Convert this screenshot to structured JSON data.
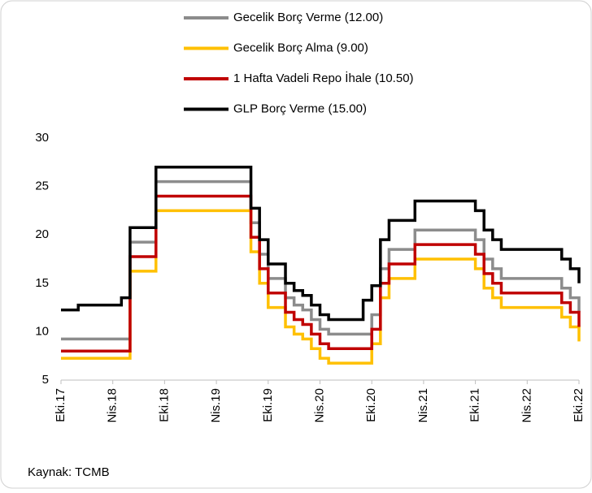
{
  "chart_data": {
    "type": "step-line",
    "categories": [
      "Eki.17",
      null,
      null,
      null,
      null,
      null,
      "Nis.18",
      null,
      null,
      null,
      null,
      null,
      "Eki.18",
      null,
      null,
      null,
      null,
      null,
      "Nis.19",
      null,
      null,
      null,
      null,
      null,
      "Eki.19",
      null,
      null,
      null,
      null,
      null,
      "Nis.20",
      null,
      null,
      null,
      null,
      null,
      "Eki.20",
      null,
      null,
      null,
      null,
      null,
      "Nis.21",
      null,
      null,
      null,
      null,
      null,
      "Eki.21",
      null,
      null,
      null,
      null,
      null,
      "Nis.22",
      null,
      null,
      null,
      null,
      null,
      "Eki.22"
    ],
    "series": [
      {
        "name": "Gecelik Borç Verme (12.00)",
        "color": "#8c8c8c",
        "values": [
          9.25,
          9.25,
          9.25,
          9.25,
          9.25,
          9.25,
          9.25,
          9.25,
          19.25,
          19.25,
          19.25,
          25.5,
          25.5,
          25.5,
          25.5,
          25.5,
          25.5,
          25.5,
          25.5,
          25.5,
          25.5,
          25.5,
          21.25,
          18,
          15.5,
          15.5,
          13.5,
          12.75,
          12.25,
          11.25,
          10.25,
          9.75,
          9.75,
          9.75,
          9.75,
          9.75,
          11.75,
          16.5,
          18.5,
          18.5,
          18.5,
          20.5,
          20.5,
          20.5,
          20.5,
          20.5,
          20.5,
          20.5,
          19.5,
          17.5,
          16.5,
          15.5,
          15.5,
          15.5,
          15.5,
          15.5,
          15.5,
          15.5,
          14.5,
          13.5,
          12
        ]
      },
      {
        "name": "Gecelik Borç Alma (9.00)",
        "color": "#ffc000",
        "values": [
          7.25,
          7.25,
          7.25,
          7.25,
          7.25,
          7.25,
          7.25,
          7.25,
          16.25,
          16.25,
          16.25,
          22.5,
          22.5,
          22.5,
          22.5,
          22.5,
          22.5,
          22.5,
          22.5,
          22.5,
          22.5,
          22.5,
          18.25,
          15,
          12.5,
          12.5,
          10.5,
          9.75,
          9.25,
          8.25,
          7.25,
          6.75,
          6.75,
          6.75,
          6.75,
          6.75,
          8.75,
          13.5,
          15.5,
          15.5,
          15.5,
          17.5,
          17.5,
          17.5,
          17.5,
          17.5,
          17.5,
          17.5,
          16.5,
          14.5,
          13.5,
          12.5,
          12.5,
          12.5,
          12.5,
          12.5,
          12.5,
          12.5,
          11.5,
          10.5,
          9
        ]
      },
      {
        "name": "1 Hafta Vadeli Repo İhale (10.50)",
        "color": "#c00000",
        "values": [
          8,
          8,
          8,
          8,
          8,
          8,
          8,
          8,
          17.75,
          17.75,
          17.75,
          24,
          24,
          24,
          24,
          24,
          24,
          24,
          24,
          24,
          24,
          24,
          19.75,
          16.5,
          14,
          14,
          12,
          11.25,
          10.75,
          9.75,
          8.75,
          8.25,
          8.25,
          8.25,
          8.25,
          8.25,
          10.25,
          15,
          17,
          17,
          17,
          19,
          19,
          19,
          19,
          19,
          19,
          19,
          18,
          16,
          15,
          14,
          14,
          14,
          14,
          14,
          14,
          14,
          13,
          12,
          10.5
        ]
      },
      {
        "name": "GLP Borç Verme (15.00)",
        "color": "#000000",
        "values": [
          12.25,
          12.25,
          12.75,
          12.75,
          12.75,
          12.75,
          12.75,
          13.5,
          20.75,
          20.75,
          20.75,
          27,
          27,
          27,
          27,
          27,
          27,
          27,
          27,
          27,
          27,
          27,
          22.75,
          19.5,
          17,
          17,
          15,
          14.25,
          13.75,
          12.75,
          11.75,
          11.25,
          11.25,
          11.25,
          11.25,
          13.25,
          14.75,
          19.5,
          21.5,
          21.5,
          21.5,
          23.5,
          23.5,
          23.5,
          23.5,
          23.5,
          23.5,
          23.5,
          22.5,
          20.5,
          19.5,
          18.5,
          18.5,
          18.5,
          18.5,
          18.5,
          18.5,
          18.5,
          17.5,
          16.5,
          15
        ]
      }
    ],
    "ylim": [
      5,
      30
    ],
    "yticks": [
      5,
      10,
      15,
      20,
      25,
      30
    ],
    "grid": false,
    "source": "Kaynak: TCMB"
  }
}
